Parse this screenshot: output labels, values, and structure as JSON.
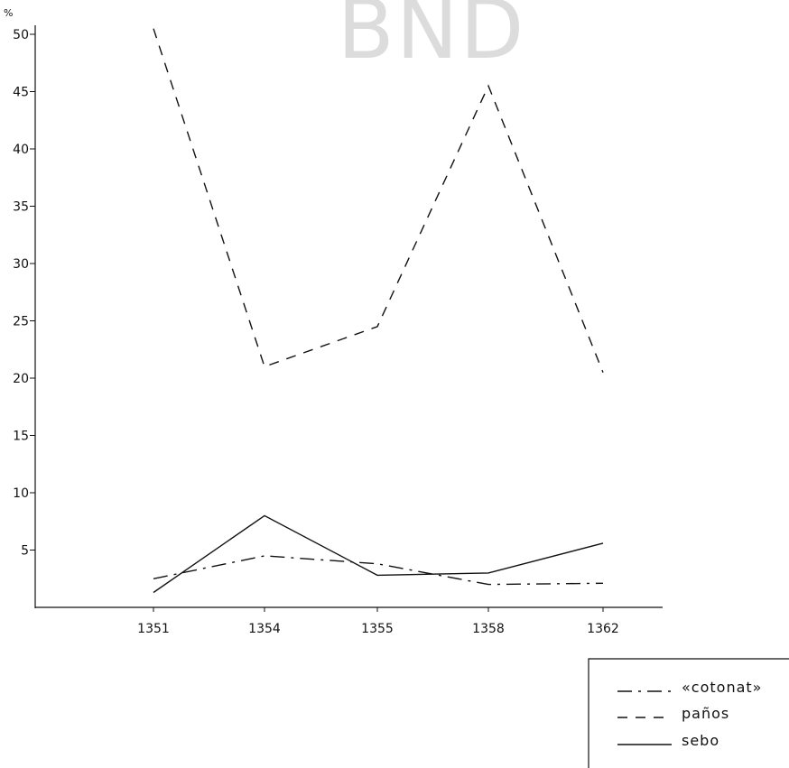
{
  "watermark": "BND",
  "chart_data": {
    "type": "line",
    "title": "",
    "xlabel": "",
    "ylabel": "%",
    "categories": [
      "1351",
      "1354",
      "1355",
      "1358",
      "1362"
    ],
    "ylim": [
      0,
      50
    ],
    "yticks": [
      5,
      10,
      15,
      20,
      25,
      30,
      35,
      40,
      45,
      50
    ],
    "grid": false,
    "legend_position": "bottom-right",
    "series": [
      {
        "name": "«cotonat»",
        "style": "dash-dot",
        "color": "#111111",
        "values": [
          2.5,
          4.5,
          3.8,
          2.0,
          2.1
        ]
      },
      {
        "name": "paños",
        "style": "dashed",
        "color": "#111111",
        "values": [
          50.5,
          21.0,
          24.5,
          45.5,
          20.5
        ]
      },
      {
        "name": "sebo",
        "style": "solid",
        "color": "#111111",
        "values": [
          1.3,
          8.0,
          2.8,
          3.0,
          5.6
        ]
      }
    ]
  }
}
